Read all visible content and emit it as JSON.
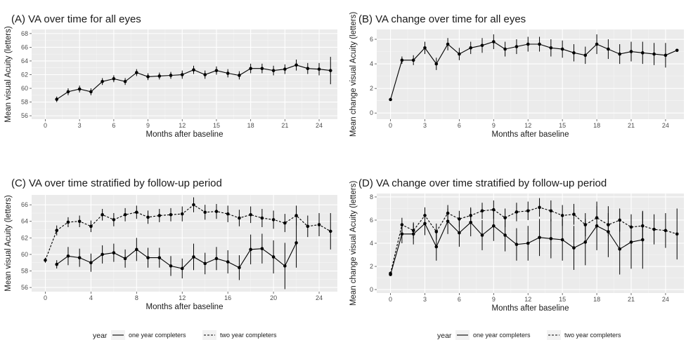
{
  "legend": {
    "title": "year",
    "items": [
      "one year completers",
      "two year completers"
    ]
  },
  "chart_data": [
    {
      "id": "A",
      "type": "line",
      "title": "(A) VA over time for all eyes",
      "xlabel": "Months after baseline",
      "ylabel": "Mean visual Acuity (letters)",
      "xlim": [
        -1.2,
        25.6
      ],
      "ylim": [
        55.5,
        68.6
      ],
      "xticks": [
        0,
        3,
        6,
        9,
        12,
        15,
        18,
        21,
        24
      ],
      "yticks": [
        56,
        58,
        60,
        62,
        64,
        66,
        68
      ],
      "series": [
        {
          "style": "solid",
          "x": [
            1,
            2,
            3,
            4,
            5,
            6,
            7,
            8,
            9,
            10,
            11,
            12,
            13,
            14,
            15,
            16,
            17,
            18,
            19,
            20,
            21,
            22,
            23,
            24,
            25
          ],
          "y": [
            58.4,
            59.5,
            59.9,
            59.5,
            61.0,
            61.4,
            61.0,
            62.3,
            61.7,
            61.8,
            61.9,
            62.0,
            62.7,
            62.0,
            62.6,
            62.2,
            61.9,
            62.9,
            62.9,
            62.6,
            62.8,
            63.4,
            62.9,
            62.8,
            62.6
          ],
          "err": [
            0.4,
            0.5,
            0.5,
            0.5,
            0.5,
            0.5,
            0.5,
            0.5,
            0.5,
            0.5,
            0.5,
            0.6,
            0.6,
            0.6,
            0.6,
            0.6,
            0.6,
            0.7,
            0.7,
            0.7,
            0.7,
            0.8,
            0.8,
            0.9,
            2.0
          ]
        }
      ]
    },
    {
      "id": "B",
      "type": "line",
      "title": "(B) VA change over time for all eyes",
      "xlabel": "Months after baseline",
      "ylabel": "Mean change visual Acuity (letters)",
      "xlim": [
        -1.2,
        25.6
      ],
      "ylim": [
        -0.5,
        6.8
      ],
      "xticks": [
        0,
        3,
        6,
        9,
        12,
        15,
        18,
        21,
        24
      ],
      "yticks": [
        0,
        2,
        4,
        6
      ],
      "series": [
        {
          "style": "solid",
          "x": [
            0,
            1,
            2,
            3,
            4,
            5,
            6,
            7,
            8,
            9,
            10,
            11,
            12,
            13,
            14,
            15,
            16,
            17,
            18,
            19,
            20,
            21,
            22,
            23,
            24,
            25
          ],
          "y": [
            1.1,
            4.3,
            4.3,
            5.3,
            4.0,
            5.6,
            4.8,
            5.3,
            5.5,
            5.8,
            5.2,
            5.4,
            5.6,
            5.6,
            5.3,
            5.2,
            4.9,
            4.7,
            5.6,
            5.2,
            4.8,
            5.0,
            4.9,
            4.8,
            4.7,
            5.1
          ],
          "err": [
            0,
            0.3,
            0.4,
            0.5,
            0.5,
            0.5,
            0.5,
            0.5,
            0.6,
            0.6,
            0.6,
            0.6,
            0.6,
            0.6,
            0.7,
            0.7,
            0.7,
            0.7,
            0.8,
            0.8,
            0.8,
            0.8,
            0.9,
            0.9,
            1.0,
            0
          ]
        }
      ]
    },
    {
      "id": "C",
      "type": "line",
      "title": "(C) VA over time stratified by follow-up period",
      "xlabel": "Months after baseline",
      "ylabel": "Mean visual Acuity (letters)",
      "xlim": [
        -1.2,
        25.6
      ],
      "ylim": [
        55.5,
        67.2
      ],
      "xticks": [
        0,
        4,
        8,
        12,
        16,
        20,
        24
      ],
      "yticks": [
        56,
        58,
        60,
        62,
        64,
        66
      ],
      "series": [
        {
          "name": "one year completers",
          "style": "solid",
          "x": [
            1,
            2,
            3,
            4,
            5,
            6,
            7,
            8,
            9,
            10,
            11,
            12,
            13,
            14,
            15,
            16,
            17,
            18,
            19,
            20,
            21,
            22
          ],
          "y": [
            58.8,
            59.8,
            59.6,
            59.0,
            60.0,
            60.2,
            59.5,
            60.6,
            59.6,
            59.6,
            58.6,
            58.3,
            59.7,
            58.9,
            59.5,
            59.1,
            58.4,
            60.6,
            60.7,
            59.7,
            58.6,
            61.4
          ],
          "err": [
            0.5,
            1.1,
            1.1,
            1.1,
            1.1,
            1.1,
            1.1,
            1.4,
            1.2,
            1.2,
            1.2,
            1.2,
            1.6,
            1.3,
            1.4,
            1.4,
            1.5,
            1.8,
            1.8,
            2.0,
            2.8,
            3.0
          ]
        },
        {
          "name": "two year completers",
          "style": "dashed",
          "x": [
            0,
            1,
            2,
            3,
            4,
            5,
            6,
            7,
            8,
            9,
            10,
            11,
            12,
            13,
            14,
            15,
            16,
            17,
            18,
            19,
            20,
            21,
            22,
            23,
            24,
            25
          ],
          "y": [
            59.3,
            62.9,
            63.9,
            64.0,
            63.4,
            64.8,
            64.2,
            64.8,
            65.1,
            64.5,
            64.7,
            64.8,
            64.9,
            66.0,
            65.1,
            65.2,
            64.9,
            64.4,
            64.8,
            64.4,
            64.2,
            63.8,
            64.7,
            63.4,
            63.6,
            62.8
          ],
          "err": [
            0.3,
            0.6,
            0.6,
            0.7,
            0.7,
            0.7,
            0.8,
            0.8,
            0.8,
            0.8,
            0.8,
            0.8,
            0.9,
            0.9,
            0.9,
            0.9,
            1.0,
            1.0,
            1.0,
            1.1,
            1.1,
            1.1,
            1.2,
            1.3,
            1.4,
            2.2
          ]
        }
      ]
    },
    {
      "id": "D",
      "type": "line",
      "title": "(D) VA change over time stratified by follow-up period",
      "xlabel": "Months after baseline",
      "ylabel": "Mean change visual Acuity (letters)",
      "xlim": [
        -1.2,
        25.6
      ],
      "ylim": [
        -0.3,
        8.3
      ],
      "xticks": [
        0,
        3,
        6,
        9,
        12,
        15,
        18,
        21,
        24
      ],
      "yticks": [
        0,
        2,
        4,
        6,
        8
      ],
      "series": [
        {
          "name": "one year completers",
          "style": "solid",
          "x": [
            0,
            1,
            2,
            3,
            4,
            5,
            6,
            7,
            8,
            9,
            10,
            11,
            12,
            13,
            14,
            15,
            16,
            17,
            18,
            19,
            20,
            21,
            22
          ],
          "y": [
            1.3,
            4.8,
            4.8,
            5.7,
            3.7,
            5.9,
            4.9,
            5.8,
            4.7,
            5.5,
            4.7,
            3.9,
            4.0,
            4.5,
            4.4,
            4.3,
            3.6,
            4.1,
            5.5,
            5.0,
            3.5,
            4.1,
            4.3
          ],
          "err": [
            0,
            0.8,
            0.9,
            1.0,
            1.2,
            1.1,
            1.2,
            1.2,
            1.3,
            1.3,
            1.4,
            1.4,
            1.5,
            1.6,
            1.7,
            1.8,
            1.9,
            2.0,
            2.1,
            2.2,
            2.2,
            2.3,
            2.5
          ]
        },
        {
          "name": "two year completers",
          "style": "dashed",
          "x": [
            0,
            1,
            2,
            3,
            4,
            5,
            6,
            7,
            8,
            9,
            10,
            11,
            12,
            13,
            14,
            15,
            16,
            17,
            18,
            19,
            20,
            21,
            22,
            23,
            24,
            25
          ],
          "y": [
            1.4,
            5.6,
            5.1,
            6.4,
            5.0,
            6.6,
            6.1,
            6.4,
            6.8,
            6.9,
            6.2,
            6.7,
            6.8,
            7.1,
            6.8,
            6.4,
            6.5,
            5.6,
            6.2,
            5.6,
            6.0,
            5.4,
            5.5,
            5.2,
            5.1,
            4.8
          ],
          "err": [
            0,
            0.6,
            0.7,
            0.7,
            0.7,
            0.7,
            0.7,
            0.7,
            0.7,
            0.8,
            0.8,
            0.8,
            0.8,
            0.8,
            0.9,
            0.9,
            0.9,
            1.0,
            1.0,
            1.0,
            1.0,
            1.1,
            1.2,
            1.3,
            1.5,
            2.2
          ]
        }
      ]
    }
  ]
}
